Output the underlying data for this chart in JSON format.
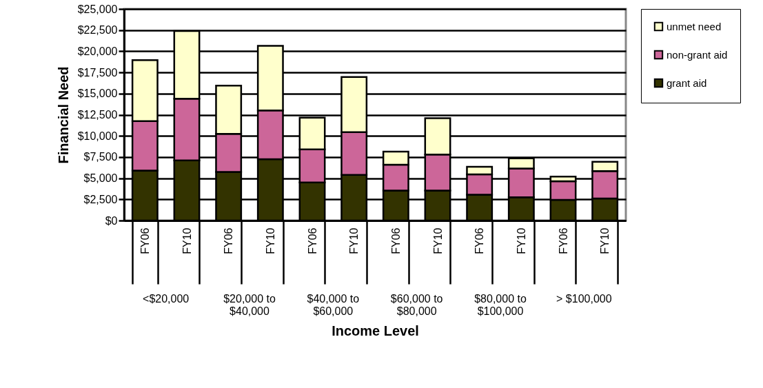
{
  "chart_data": {
    "type": "bar",
    "stacked": true,
    "xlabel": "Income Level",
    "ylabel": "Financial Need",
    "categories": [
      "FY06",
      "FY10",
      "FY06",
      "FY10",
      "FY06",
      "FY10",
      "FY06",
      "FY10",
      "FY06",
      "FY10",
      "FY06",
      "FY10"
    ],
    "annotations": [
      "<$20,000",
      "$20,000 to\n$40,000",
      "$40,000 to\n$60,000",
      "$60,000 to\n$80,000",
      "$80,000 to\n$100,000",
      "> $100,000"
    ],
    "series": [
      {
        "name": "grant aid",
        "color": "#333300",
        "values": [
          5900,
          7100,
          5750,
          7250,
          4500,
          5400,
          3550,
          3550,
          3050,
          2750,
          2450,
          2600
        ]
      },
      {
        "name": "non-grant aid",
        "color": "#cc6699",
        "values": [
          5850,
          7300,
          4500,
          5750,
          3900,
          5050,
          3050,
          4250,
          2400,
          3400,
          2200,
          3250
        ]
      },
      {
        "name": "unmet need",
        "color": "#ffffcc",
        "values": [
          7200,
          8000,
          5700,
          7650,
          3750,
          6500,
          1550,
          4300,
          900,
          1200,
          550,
          1100
        ]
      }
    ],
    "ylim": [
      0,
      25000
    ],
    "yticks": [
      {
        "value": 0,
        "label": "$0"
      },
      {
        "value": 2500,
        "label": "$2,500"
      },
      {
        "value": 5000,
        "label": "$5,000"
      },
      {
        "value": 7500,
        "label": "$7,500"
      },
      {
        "value": 10000,
        "label": "$10,000"
      },
      {
        "value": 12500,
        "label": "$12,500"
      },
      {
        "value": 15000,
        "label": "$15,000"
      },
      {
        "value": 17500,
        "label": "$17,500"
      },
      {
        "value": 20000,
        "label": "$20,000"
      },
      {
        "value": 22500,
        "label": "$22,500"
      },
      {
        "value": 25000,
        "label": "$25,000"
      }
    ],
    "grid": "y",
    "legend": "right"
  }
}
